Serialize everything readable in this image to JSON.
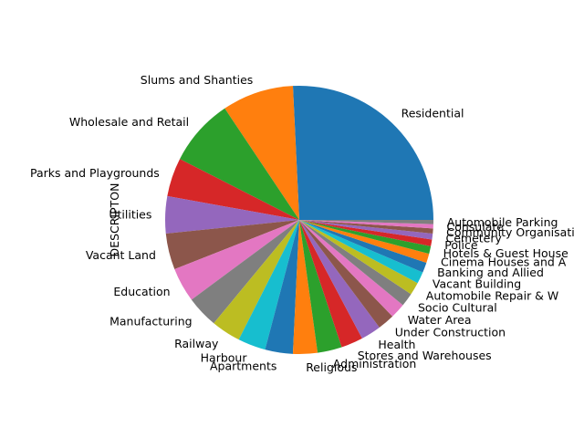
{
  "chart_data": {
    "type": "pie",
    "ylabel": "DESCRIPTON",
    "start_angle_deg": 0,
    "direction": "counterclockwise",
    "slices": [
      {
        "label": "Residential",
        "value": 25.4,
        "color": "#1f77b4"
      },
      {
        "label": "Slums and Shanties",
        "value": 8.5,
        "color": "#ff7f0e"
      },
      {
        "label": "Wholesale and Retail",
        "value": 8.0,
        "color": "#2ca02c"
      },
      {
        "label": "Parks and Playgrounds",
        "value": 4.6,
        "color": "#d62728"
      },
      {
        "label": "Utilities",
        "value": 4.4,
        "color": "#9467bd"
      },
      {
        "label": "Vacant Land",
        "value": 4.3,
        "color": "#8c564b"
      },
      {
        "label": "Education",
        "value": 4.1,
        "color": "#e377c2"
      },
      {
        "label": "Manufacturing",
        "value": 3.8,
        "color": "#7f7f7f"
      },
      {
        "label": "Railway",
        "value": 3.5,
        "color": "#bcbd22"
      },
      {
        "label": "Harbour",
        "value": 3.3,
        "color": "#17becf"
      },
      {
        "label": "Apartments",
        "value": 3.3,
        "color": "#1f77b4"
      },
      {
        "label": "Religious",
        "value": 2.9,
        "color": "#ff7f0e"
      },
      {
        "label": "Administration",
        "value": 2.9,
        "color": "#2ca02c"
      },
      {
        "label": "Stores and Warehouses",
        "value": 2.6,
        "color": "#d62728"
      },
      {
        "label": "Health",
        "value": 2.4,
        "color": "#9467bd"
      },
      {
        "label": "Under Construction",
        "value": 2.0,
        "color": "#8c564b"
      },
      {
        "label": "Water Area",
        "value": 1.8,
        "color": "#e377c2"
      },
      {
        "label": "Socio Cultural",
        "value": 1.6,
        "color": "#7f7f7f"
      },
      {
        "label": "Automobile Repair & W",
        "value": 1.5,
        "color": "#bcbd22"
      },
      {
        "label": "Vacant Building",
        "value": 1.4,
        "color": "#17becf"
      },
      {
        "label": "Banking and Allied",
        "value": 1.2,
        "color": "#1f77b4"
      },
      {
        "label": "Cinema Houses and A",
        "value": 1.1,
        "color": "#ff7f0e"
      },
      {
        "label": "Hotels & Guest House",
        "value": 0.9,
        "color": "#2ca02c"
      },
      {
        "label": "Police",
        "value": 0.8,
        "color": "#d62728"
      },
      {
        "label": "Cemetery",
        "value": 0.7,
        "color": "#9467bd"
      },
      {
        "label": "Community Organisati",
        "value": 0.6,
        "color": "#8c564b"
      },
      {
        "label": "Consulate",
        "value": 0.5,
        "color": "#e377c2"
      },
      {
        "label": "Automobile Parking",
        "value": 0.5,
        "color": "#7f7f7f"
      }
    ]
  }
}
